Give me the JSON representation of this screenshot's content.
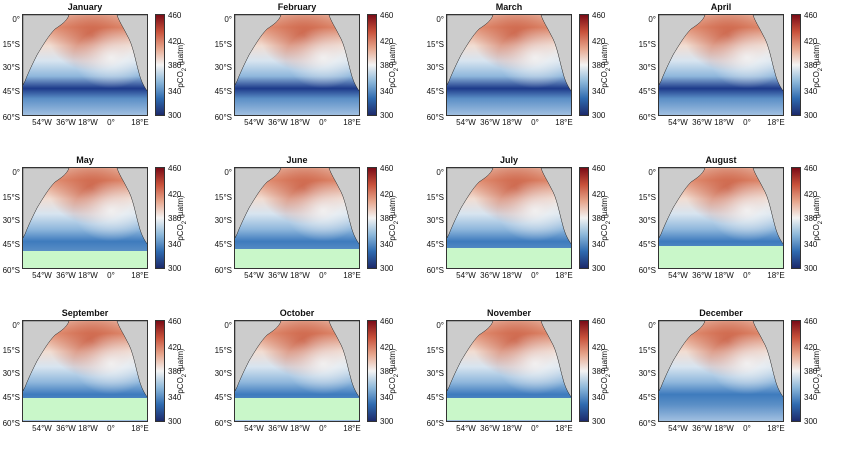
{
  "figure": {
    "months": [
      "January",
      "February",
      "March",
      "April",
      "May",
      "June",
      "July",
      "August",
      "September",
      "October",
      "November",
      "December"
    ],
    "lat_ticks": [
      "0°",
      "15°S",
      "30°S",
      "45°S",
      "60°S"
    ],
    "lon_ticks": [
      "54°W",
      "36°W",
      "18°W",
      "0°",
      "18°E"
    ],
    "colorbar": {
      "min": 300,
      "max": 460,
      "ticks": [
        "460",
        "420",
        "380",
        "340",
        "300"
      ],
      "label_main": "pCO",
      "label_sub": "2",
      "label_unit": "(µatm)",
      "colormap": [
        "#1d2a6b",
        "#2f6bb0",
        "#8db8da",
        "#f3f3f3",
        "#e6a58c",
        "#c8513a",
        "#7a0c17"
      ]
    },
    "land_color": "#cccccc",
    "ice_color": "#c9f7c9",
    "panels_with_ice_band": [
      "May",
      "June",
      "July",
      "August",
      "September",
      "October",
      "November"
    ]
  }
}
